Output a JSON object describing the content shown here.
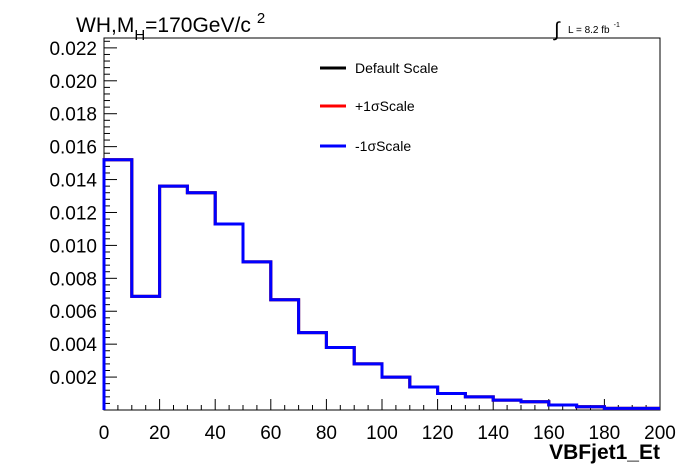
{
  "chart_data": {
    "type": "line",
    "title": {
      "main": "WH,M",
      "sub": "H",
      "rest": "=170GeV/c",
      "sup": "2"
    },
    "lumi": {
      "integral_symbol": "∫",
      "text": "L = 8.2 fb",
      "sup": "-1"
    },
    "xlabel": "VBFjet1_Et",
    "ylabel": "",
    "xlim": [
      0,
      200
    ],
    "ylim": [
      0,
      0.0226
    ],
    "x_ticks": [
      "0",
      "20",
      "40",
      "60",
      "80",
      "100",
      "120",
      "140",
      "160",
      "180",
      "200"
    ],
    "y_ticks": [
      "0.002",
      "0.004",
      "0.006",
      "0.008",
      "0.010",
      "0.012",
      "0.014",
      "0.016",
      "0.018",
      "0.020",
      "0.022"
    ],
    "bin_edges": [
      0,
      10,
      20,
      30,
      40,
      50,
      60,
      70,
      80,
      90,
      100,
      110,
      120,
      130,
      140,
      150,
      160,
      170,
      180,
      190,
      200
    ],
    "series": [
      {
        "name": "Default Scale",
        "color": "#000000",
        "values": [
          0.0152,
          0.0069,
          0.0136,
          0.0132,
          0.0113,
          0.009,
          0.0067,
          0.0047,
          0.0038,
          0.0028,
          0.002,
          0.0014,
          0.001,
          0.0008,
          0.0006,
          0.0005,
          0.0003,
          0.0002,
          0.0001,
          0.0001
        ]
      },
      {
        "name": "+1σScale",
        "color": "#ff0000",
        "values": [
          0.0152,
          0.0069,
          0.0136,
          0.0132,
          0.0113,
          0.009,
          0.0067,
          0.0047,
          0.0038,
          0.0028,
          0.002,
          0.0014,
          0.001,
          0.0008,
          0.0006,
          0.0005,
          0.0003,
          0.0002,
          0.0001,
          0.0001
        ]
      },
      {
        "name": "-1σScale",
        "color": "#0000ff",
        "values": [
          0.0152,
          0.0069,
          0.0136,
          0.0132,
          0.0113,
          0.009,
          0.0067,
          0.0047,
          0.0038,
          0.0028,
          0.002,
          0.0014,
          0.001,
          0.0008,
          0.0006,
          0.0005,
          0.0003,
          0.0002,
          0.0001,
          0.0001
        ]
      }
    ],
    "legend": "top-center",
    "grid": false
  }
}
